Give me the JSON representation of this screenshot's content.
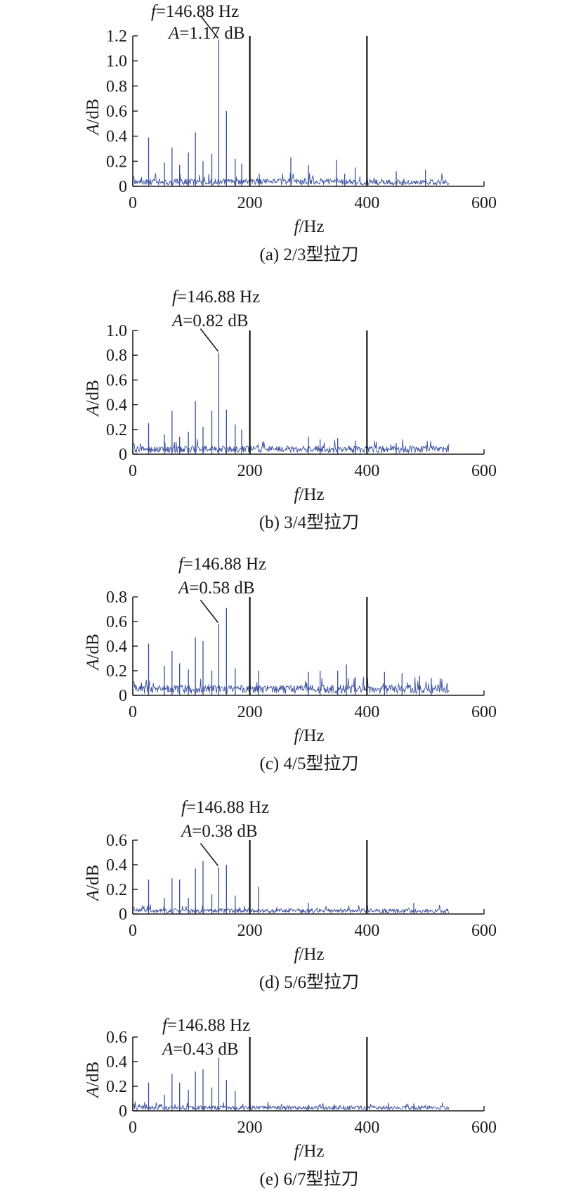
{
  "colors": {
    "spectrum": "#3a4f9e",
    "axes": "#1a1a1a",
    "reference_lines": "#000000"
  },
  "chart_data": [
    {
      "type": "line",
      "caption": "(a) 2/3型拉刀",
      "xlabel": {
        "italic": "f",
        "rest": "/Hz"
      },
      "ylabel": {
        "italic": "A",
        "rest": "/dB"
      },
      "xlim": [
        0,
        600
      ],
      "ylim": [
        0,
        1.2
      ],
      "xticks": [
        "0",
        "200",
        "400",
        "600"
      ],
      "yticks": [
        "0",
        "0.2",
        "0.4",
        "0.6",
        "0.8",
        "1.0",
        "1.2"
      ],
      "reference_lines_x": [
        200,
        400
      ],
      "noise_floor": 0.035,
      "peaks": [
        [
          27,
          0.39
        ],
        [
          54,
          0.19
        ],
        [
          67,
          0.31
        ],
        [
          80,
          0.17
        ],
        [
          95,
          0.27
        ],
        [
          107,
          0.43
        ],
        [
          120,
          0.2
        ],
        [
          135,
          0.26
        ],
        [
          146.88,
          1.17
        ],
        [
          160,
          0.6
        ],
        [
          175,
          0.22
        ],
        [
          186,
          0.18
        ],
        [
          200,
          0.16
        ],
        [
          216,
          0.1
        ],
        [
          270,
          0.23
        ],
        [
          300,
          0.17
        ],
        [
          348,
          0.21
        ],
        [
          362,
          0.1
        ],
        [
          380,
          0.15
        ],
        [
          400,
          0.11
        ],
        [
          450,
          0.12
        ],
        [
          500,
          0.13
        ]
      ],
      "annotation": {
        "f_sym": "f",
        "f_text": "=146.88 Hz",
        "a_sym": "A",
        "a_text": "=1.17 dB",
        "x": 146.88,
        "y": 1.17
      }
    },
    {
      "type": "line",
      "caption": "(b) 3/4型拉刀",
      "xlabel": {
        "italic": "f",
        "rest": "/Hz"
      },
      "ylabel": {
        "italic": "A",
        "rest": "/dB"
      },
      "xlim": [
        0,
        600
      ],
      "ylim": [
        0,
        1.0
      ],
      "xticks": [
        "0",
        "200",
        "400",
        "600"
      ],
      "yticks": [
        "0",
        "0.2",
        "0.4",
        "0.6",
        "0.8",
        "1.0"
      ],
      "reference_lines_x": [
        200,
        400
      ],
      "noise_floor": 0.04,
      "peaks": [
        [
          27,
          0.25
        ],
        [
          54,
          0.16
        ],
        [
          67,
          0.35
        ],
        [
          80,
          0.14
        ],
        [
          95,
          0.18
        ],
        [
          107,
          0.43
        ],
        [
          120,
          0.22
        ],
        [
          135,
          0.35
        ],
        [
          146.88,
          0.82
        ],
        [
          160,
          0.36
        ],
        [
          175,
          0.24
        ],
        [
          186,
          0.2
        ],
        [
          300,
          0.14
        ],
        [
          320,
          0.12
        ],
        [
          350,
          0.13
        ],
        [
          380,
          0.11
        ],
        [
          400,
          0.1
        ],
        [
          450,
          0.09
        ]
      ],
      "annotation": {
        "f_sym": "f",
        "f_text": "=146.88 Hz",
        "a_sym": "A",
        "a_text": "=0.82 dB",
        "x": 146.88,
        "y": 0.82
      }
    },
    {
      "type": "line",
      "caption": "(c) 4/5型拉刀",
      "xlabel": {
        "italic": "f",
        "rest": "/Hz"
      },
      "ylabel": {
        "italic": "A",
        "rest": "/dB"
      },
      "xlim": [
        0,
        600
      ],
      "ylim": [
        0,
        0.8
      ],
      "xticks": [
        "0",
        "200",
        "400",
        "600"
      ],
      "yticks": [
        "0",
        "0.2",
        "0.4",
        "0.6",
        "0.8"
      ],
      "reference_lines_x": [
        200,
        400
      ],
      "noise_floor": 0.05,
      "peaks": [
        [
          27,
          0.42
        ],
        [
          54,
          0.24
        ],
        [
          67,
          0.36
        ],
        [
          80,
          0.26
        ],
        [
          95,
          0.21
        ],
        [
          107,
          0.47
        ],
        [
          120,
          0.44
        ],
        [
          135,
          0.2
        ],
        [
          146.88,
          0.58
        ],
        [
          160,
          0.71
        ],
        [
          175,
          0.22
        ],
        [
          200,
          0.17
        ],
        [
          215,
          0.2
        ],
        [
          300,
          0.19
        ],
        [
          320,
          0.2
        ],
        [
          350,
          0.2
        ],
        [
          365,
          0.25
        ],
        [
          380,
          0.15
        ],
        [
          400,
          0.2
        ],
        [
          430,
          0.19
        ],
        [
          460,
          0.18
        ],
        [
          490,
          0.16
        ],
        [
          510,
          0.14
        ]
      ],
      "annotation": {
        "f_sym": "f",
        "f_text": "=146.88 Hz",
        "a_sym": "A",
        "a_text": "=0.58 dB",
        "x": 146.88,
        "y": 0.58
      }
    },
    {
      "type": "line",
      "caption": "(d) 5/6型拉刀",
      "xlabel": {
        "italic": "f",
        "rest": "/Hz"
      },
      "ylabel": {
        "italic": "A",
        "rest": "/dB"
      },
      "xlim": [
        0,
        600
      ],
      "ylim": [
        0,
        0.6
      ],
      "xticks": [
        "0",
        "200",
        "400",
        "600"
      ],
      "yticks": [
        "0",
        "0.2",
        "0.4",
        "0.6"
      ],
      "reference_lines_x": [
        200,
        400
      ],
      "noise_floor": 0.025,
      "peaks": [
        [
          27,
          0.28
        ],
        [
          54,
          0.13
        ],
        [
          67,
          0.29
        ],
        [
          80,
          0.28
        ],
        [
          95,
          0.13
        ],
        [
          107,
          0.37
        ],
        [
          120,
          0.43
        ],
        [
          135,
          0.16
        ],
        [
          146.88,
          0.38
        ],
        [
          160,
          0.4
        ],
        [
          175,
          0.15
        ],
        [
          200,
          0.11
        ],
        [
          215,
          0.22
        ],
        [
          300,
          0.09
        ],
        [
          400,
          0.05
        ],
        [
          480,
          0.09
        ]
      ],
      "annotation": {
        "f_sym": "f",
        "f_text": "=146.88 Hz",
        "a_sym": "A",
        "a_text": "=0.38 dB",
        "x": 146.88,
        "y": 0.38
      }
    },
    {
      "type": "line",
      "caption": "(e) 6/7型拉刀",
      "xlabel": {
        "italic": "f",
        "rest": "/Hz"
      },
      "ylabel": {
        "italic": "A",
        "rest": "/dB"
      },
      "xlim": [
        0,
        600
      ],
      "ylim": [
        0,
        0.6
      ],
      "xticks": [
        "0",
        "200",
        "400",
        "600"
      ],
      "yticks": [
        "0",
        "0.2",
        "0.4",
        "0.6"
      ],
      "reference_lines_x": [
        200,
        400
      ],
      "noise_floor": 0.025,
      "peaks": [
        [
          27,
          0.23
        ],
        [
          54,
          0.13
        ],
        [
          67,
          0.3
        ],
        [
          80,
          0.23
        ],
        [
          95,
          0.17
        ],
        [
          107,
          0.32
        ],
        [
          120,
          0.34
        ],
        [
          135,
          0.19
        ],
        [
          146.88,
          0.43
        ],
        [
          160,
          0.25
        ],
        [
          175,
          0.16
        ],
        [
          200,
          0.06
        ],
        [
          300,
          0.05
        ],
        [
          400,
          0.05
        ],
        [
          480,
          0.06
        ]
      ],
      "annotation": {
        "f_sym": "f",
        "f_text": "=146.88 Hz",
        "a_sym": "A",
        "a_text": "=0.43 dB",
        "x": 146.88,
        "y": 0.43
      }
    }
  ]
}
